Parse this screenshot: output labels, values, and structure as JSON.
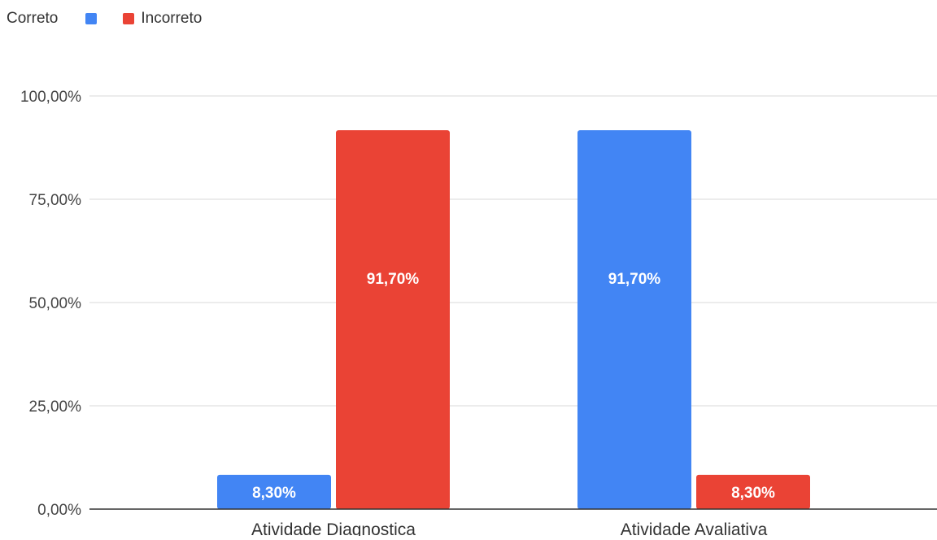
{
  "chart_data": {
    "type": "bar",
    "categories": [
      "Atividade Diagnostica",
      "Atividade Avaliativa"
    ],
    "series": [
      {
        "name": "Correto",
        "values": [
          8.3,
          91.7
        ],
        "labels": [
          "8,30%",
          "91,70%"
        ],
        "color": "#4285f4"
      },
      {
        "name": "Incorreto",
        "values": [
          91.7,
          8.3
        ],
        "labels": [
          "91,70%",
          "8,30%"
        ],
        "color": "#ea4335"
      }
    ],
    "yticks": [
      {
        "value": 0,
        "label": "0,00%"
      },
      {
        "value": 25,
        "label": "25,00%"
      },
      {
        "value": 50,
        "label": "50,00%"
      },
      {
        "value": 75,
        "label": "75,00%"
      },
      {
        "value": 100,
        "label": "100,00%"
      }
    ],
    "ylim": [
      0,
      100
    ],
    "grid": true,
    "legend_position": "top-left",
    "title": "",
    "xlabel": "",
    "ylabel": ""
  }
}
